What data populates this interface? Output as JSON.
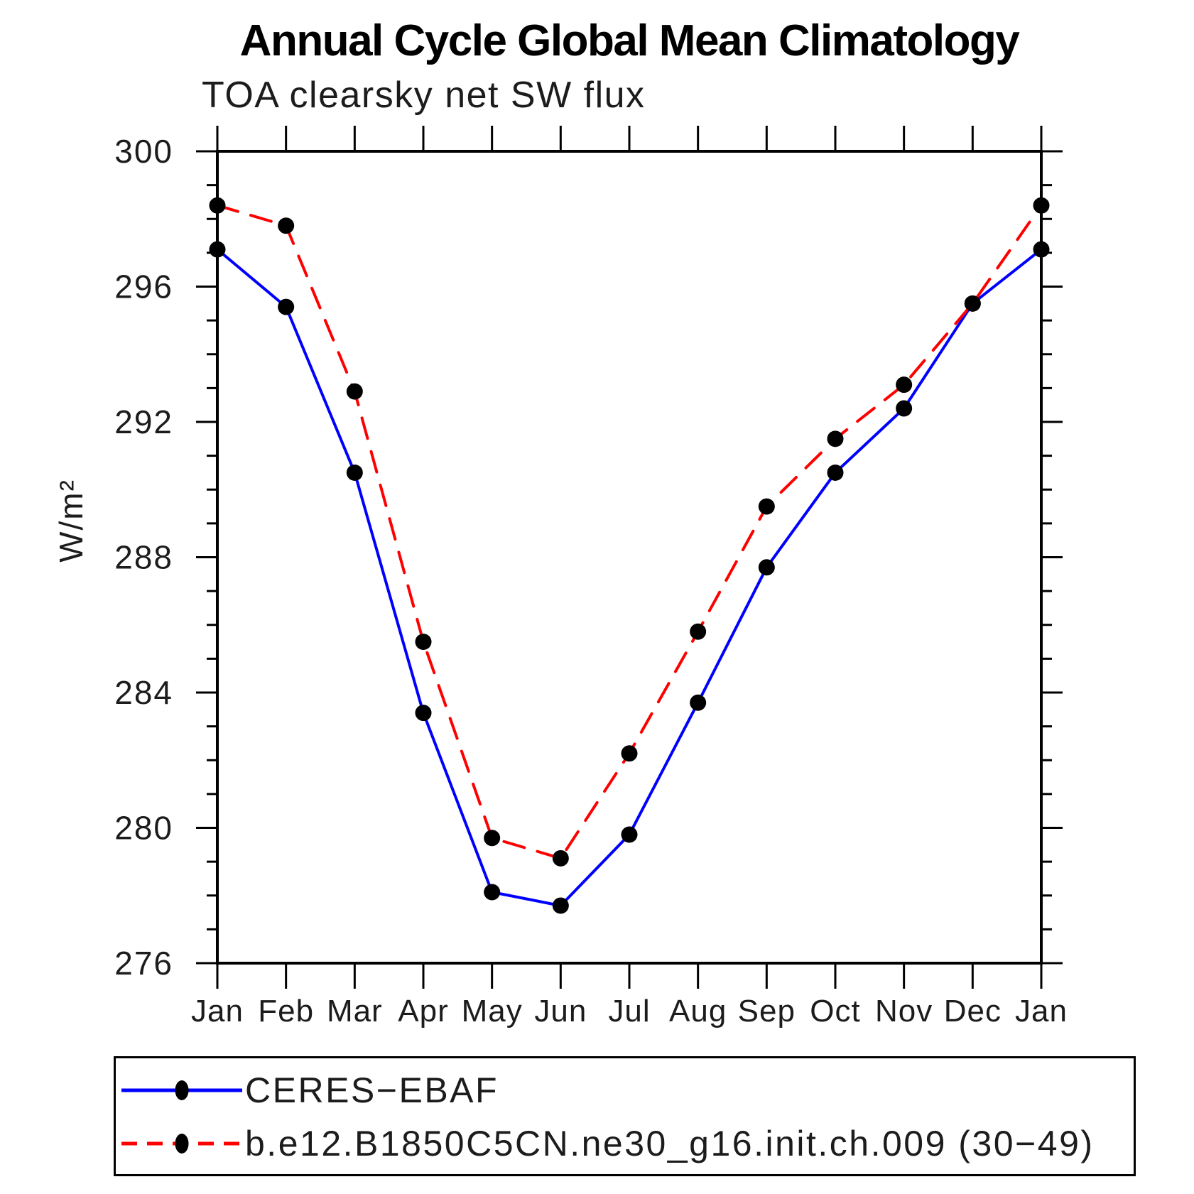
{
  "chart_data": {
    "type": "line",
    "title": "Annual Cycle Global Mean Climatology",
    "subtitle": "TOA clearsky net SW flux",
    "ylabel": "W/m²",
    "x_categories": [
      "Jan",
      "Feb",
      "Mar",
      "Apr",
      "May",
      "Jun",
      "Jul",
      "Aug",
      "Sep",
      "Oct",
      "Nov",
      "Dec",
      "Jan"
    ],
    "ylim": [
      276,
      300
    ],
    "ytick_major_step": 4,
    "ytick_minor_step": 1,
    "grid": false,
    "legend_position": "bottom-left-box",
    "axis_color": "#000000",
    "marker": "filled-circle",
    "marker_color": "#000000",
    "series": [
      {
        "name": "CERES−EBAF",
        "color": "#0000ff",
        "style": "solid",
        "values": [
          297.1,
          295.4,
          290.5,
          283.4,
          278.1,
          277.7,
          279.8,
          283.7,
          287.7,
          290.5,
          292.4,
          295.5,
          297.1
        ]
      },
      {
        "name": "b.e12.B1850C5CN.ne30_g16.init.ch.009 (30−49)",
        "color": "#ff0000",
        "style": "dashed",
        "values": [
          298.4,
          297.8,
          292.9,
          285.5,
          279.7,
          279.1,
          282.2,
          285.8,
          289.5,
          291.5,
          293.1,
          295.5,
          298.4
        ]
      }
    ]
  }
}
